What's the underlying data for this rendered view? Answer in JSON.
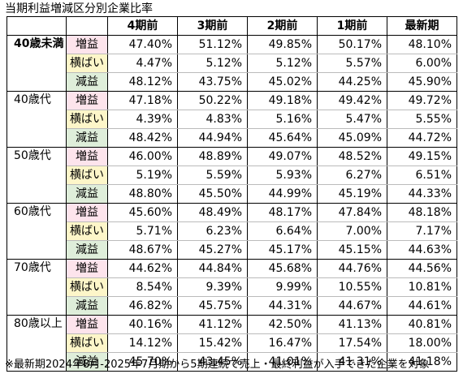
{
  "title": "当期利益増減区分別企業比率",
  "columns": [
    "4期前",
    "3期前",
    "2期前",
    "1期前",
    "最新期"
  ],
  "labels": {
    "inc": "増益",
    "flat": "横ばい",
    "dec": "減益"
  },
  "groups": [
    {
      "age": "40歳未満",
      "bold": true,
      "inc": [
        "47.40%",
        "51.12%",
        "49.85%",
        "50.17%",
        "48.10%"
      ],
      "flat": [
        "4.47%",
        "5.12%",
        "5.12%",
        "5.57%",
        "6.00%"
      ],
      "dec": [
        "48.12%",
        "43.75%",
        "45.02%",
        "44.25%",
        "45.90%"
      ]
    },
    {
      "age": "40歳代",
      "bold": false,
      "inc": [
        "47.18%",
        "50.22%",
        "49.18%",
        "49.42%",
        "49.72%"
      ],
      "flat": [
        "4.39%",
        "4.83%",
        "5.16%",
        "5.47%",
        "5.55%"
      ],
      "dec": [
        "48.42%",
        "44.94%",
        "45.64%",
        "45.09%",
        "44.72%"
      ]
    },
    {
      "age": "50歳代",
      "bold": false,
      "inc": [
        "46.00%",
        "48.89%",
        "49.07%",
        "48.52%",
        "49.15%"
      ],
      "flat": [
        "5.19%",
        "5.59%",
        "5.93%",
        "6.27%",
        "6.51%"
      ],
      "dec": [
        "48.80%",
        "45.50%",
        "44.99%",
        "45.19%",
        "44.33%"
      ]
    },
    {
      "age": "60歳代",
      "bold": false,
      "inc": [
        "45.60%",
        "48.49%",
        "48.17%",
        "47.84%",
        "48.18%"
      ],
      "flat": [
        "5.71%",
        "6.23%",
        "6.64%",
        "7.00%",
        "7.17%"
      ],
      "dec": [
        "48.67%",
        "45.27%",
        "45.17%",
        "45.15%",
        "44.63%"
      ]
    },
    {
      "age": "70歳代",
      "bold": false,
      "inc": [
        "44.62%",
        "44.84%",
        "45.68%",
        "44.76%",
        "44.56%"
      ],
      "flat": [
        "8.54%",
        "9.39%",
        "9.99%",
        "10.55%",
        "10.81%"
      ],
      "dec": [
        "46.82%",
        "45.75%",
        "44.31%",
        "44.67%",
        "44.61%"
      ]
    },
    {
      "age": "80歳以上",
      "bold": false,
      "inc": [
        "40.16%",
        "41.12%",
        "42.50%",
        "41.13%",
        "40.81%"
      ],
      "flat": [
        "14.12%",
        "15.42%",
        "16.47%",
        "17.54%",
        "18.00%"
      ],
      "dec": [
        "45.70%",
        "43.45%",
        "41.01%",
        "41.31%",
        "41.18%"
      ]
    }
  ],
  "footnote": "※最新期2024年8月-2025年7月期から5期連続で売上・最終利益が入手できた企業を対象"
}
